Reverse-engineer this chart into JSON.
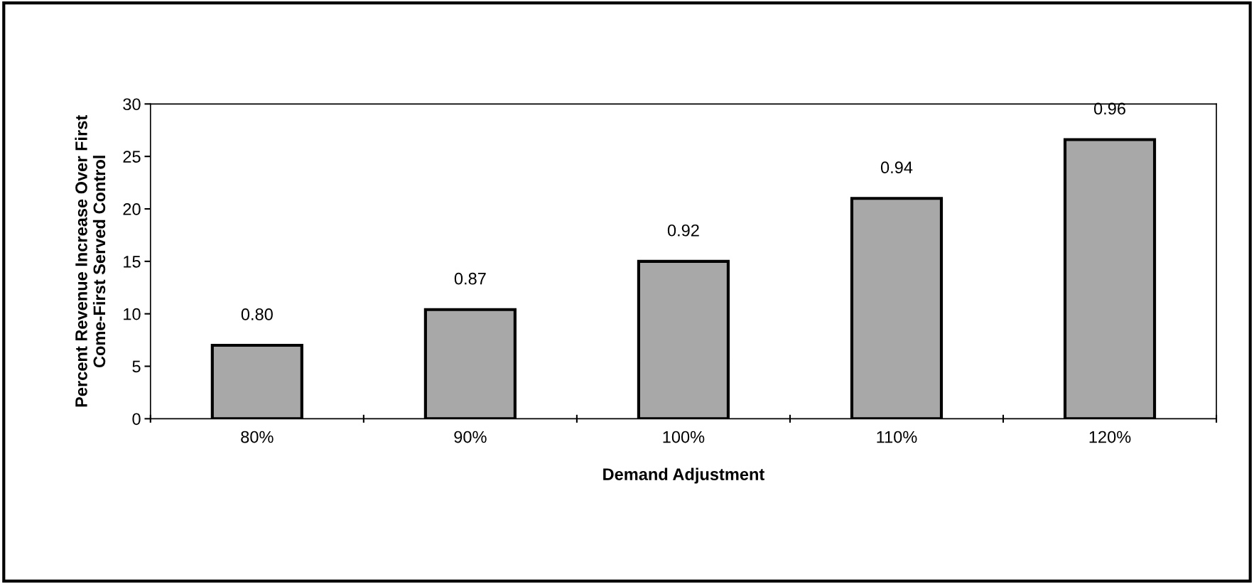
{
  "chart_data": {
    "type": "bar",
    "xlabel": "Demand Adjustment",
    "ylabel": "Percent Revenue Increase Over First\nCome-First Served Control",
    "categories": [
      "80%",
      "90%",
      "100%",
      "110%",
      "120%"
    ],
    "values": [
      7.0,
      10.4,
      15.0,
      21.0,
      26.6
    ],
    "annotations": [
      {
        "text": "0.80",
        "x": "80%",
        "y": 7.0
      },
      {
        "text": "0.87",
        "x": "90%",
        "y": 10.4
      },
      {
        "text": "0.92",
        "x": "100%",
        "y": 15.0
      },
      {
        "text": "0.94",
        "x": "110%",
        "y": 21.0
      },
      {
        "text": "0.96",
        "x": "120%",
        "y": 26.6
      }
    ],
    "color": "#a8a8a8",
    "ylim": [
      0,
      30
    ],
    "yticks": [
      0,
      5,
      10,
      15,
      20,
      25,
      30
    ],
    "grid": false,
    "legend": false
  }
}
